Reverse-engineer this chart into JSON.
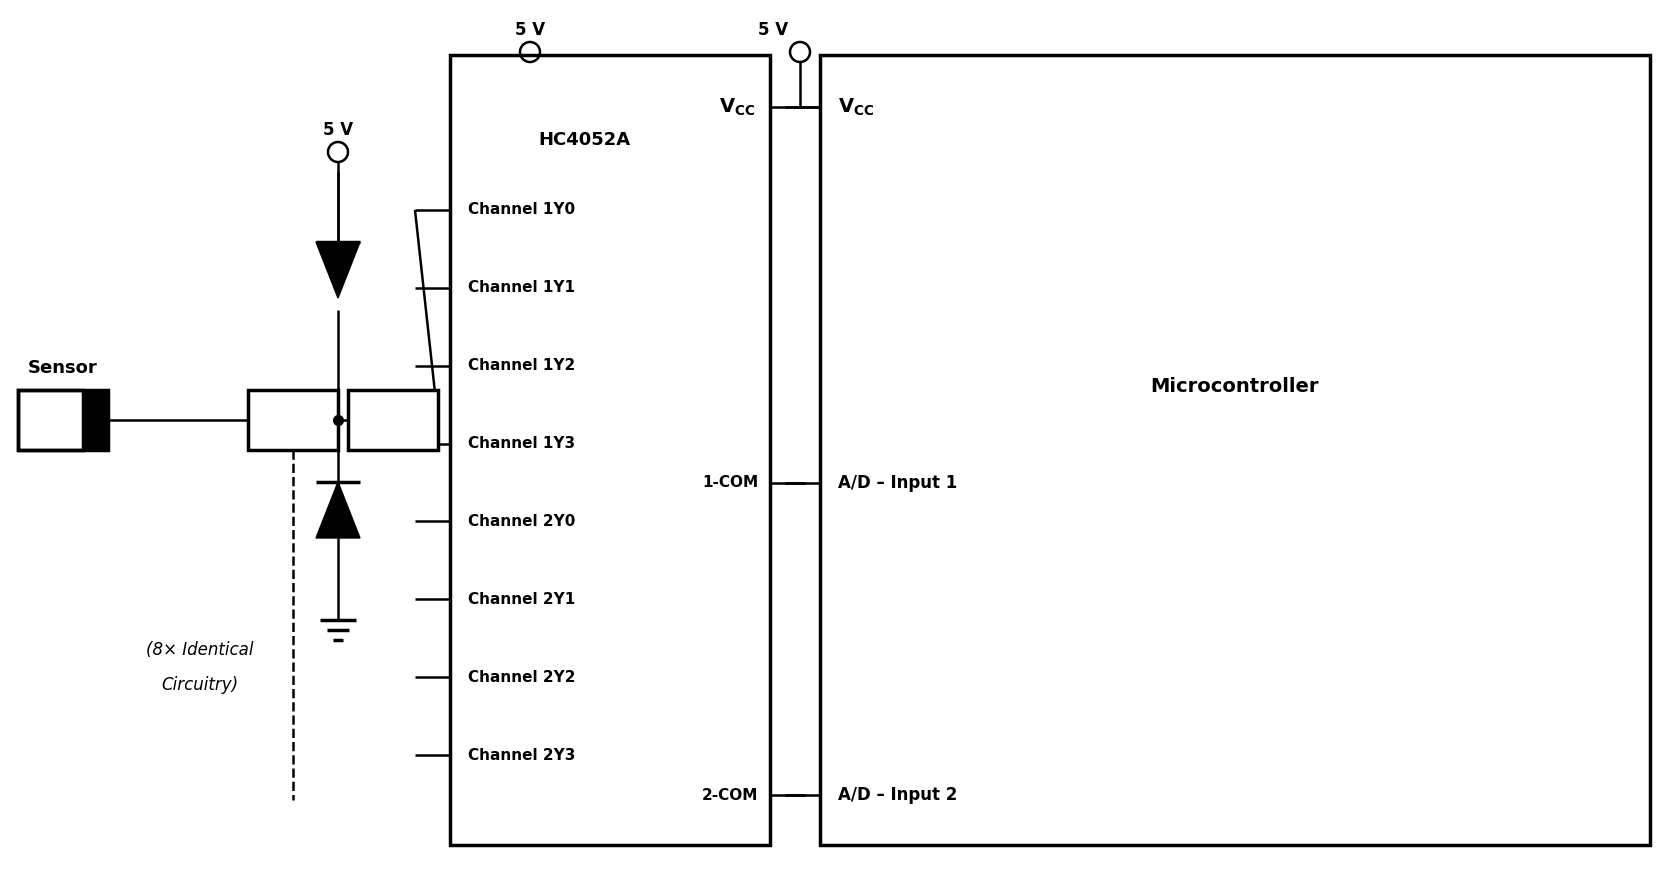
{
  "bg_color": "#ffffff",
  "line_color": "#000000",
  "lw": 1.8,
  "tlw": 2.5,
  "figsize": [
    16.8,
    8.92
  ],
  "dpi": 100,
  "sensor_label": "Sensor",
  "channels": [
    "Channel 1Y0",
    "Channel 1Y1",
    "Channel 1Y2",
    "Channel 1Y3",
    "Channel 2Y0",
    "Channel 2Y1",
    "Channel 2Y2",
    "Channel 2Y3"
  ],
  "com1_label": "1-COM",
  "com2_label": "2-COM",
  "hc_label": "HC4052A",
  "mc_label": "Microcontroller",
  "ad_input1_label": "A/D – Input 1",
  "ad_input2_label": "A/D – Input 2",
  "identical_label_line1": "(8× Identical",
  "identical_label_line2": "Circuitry)",
  "fivev_label": "5 V"
}
